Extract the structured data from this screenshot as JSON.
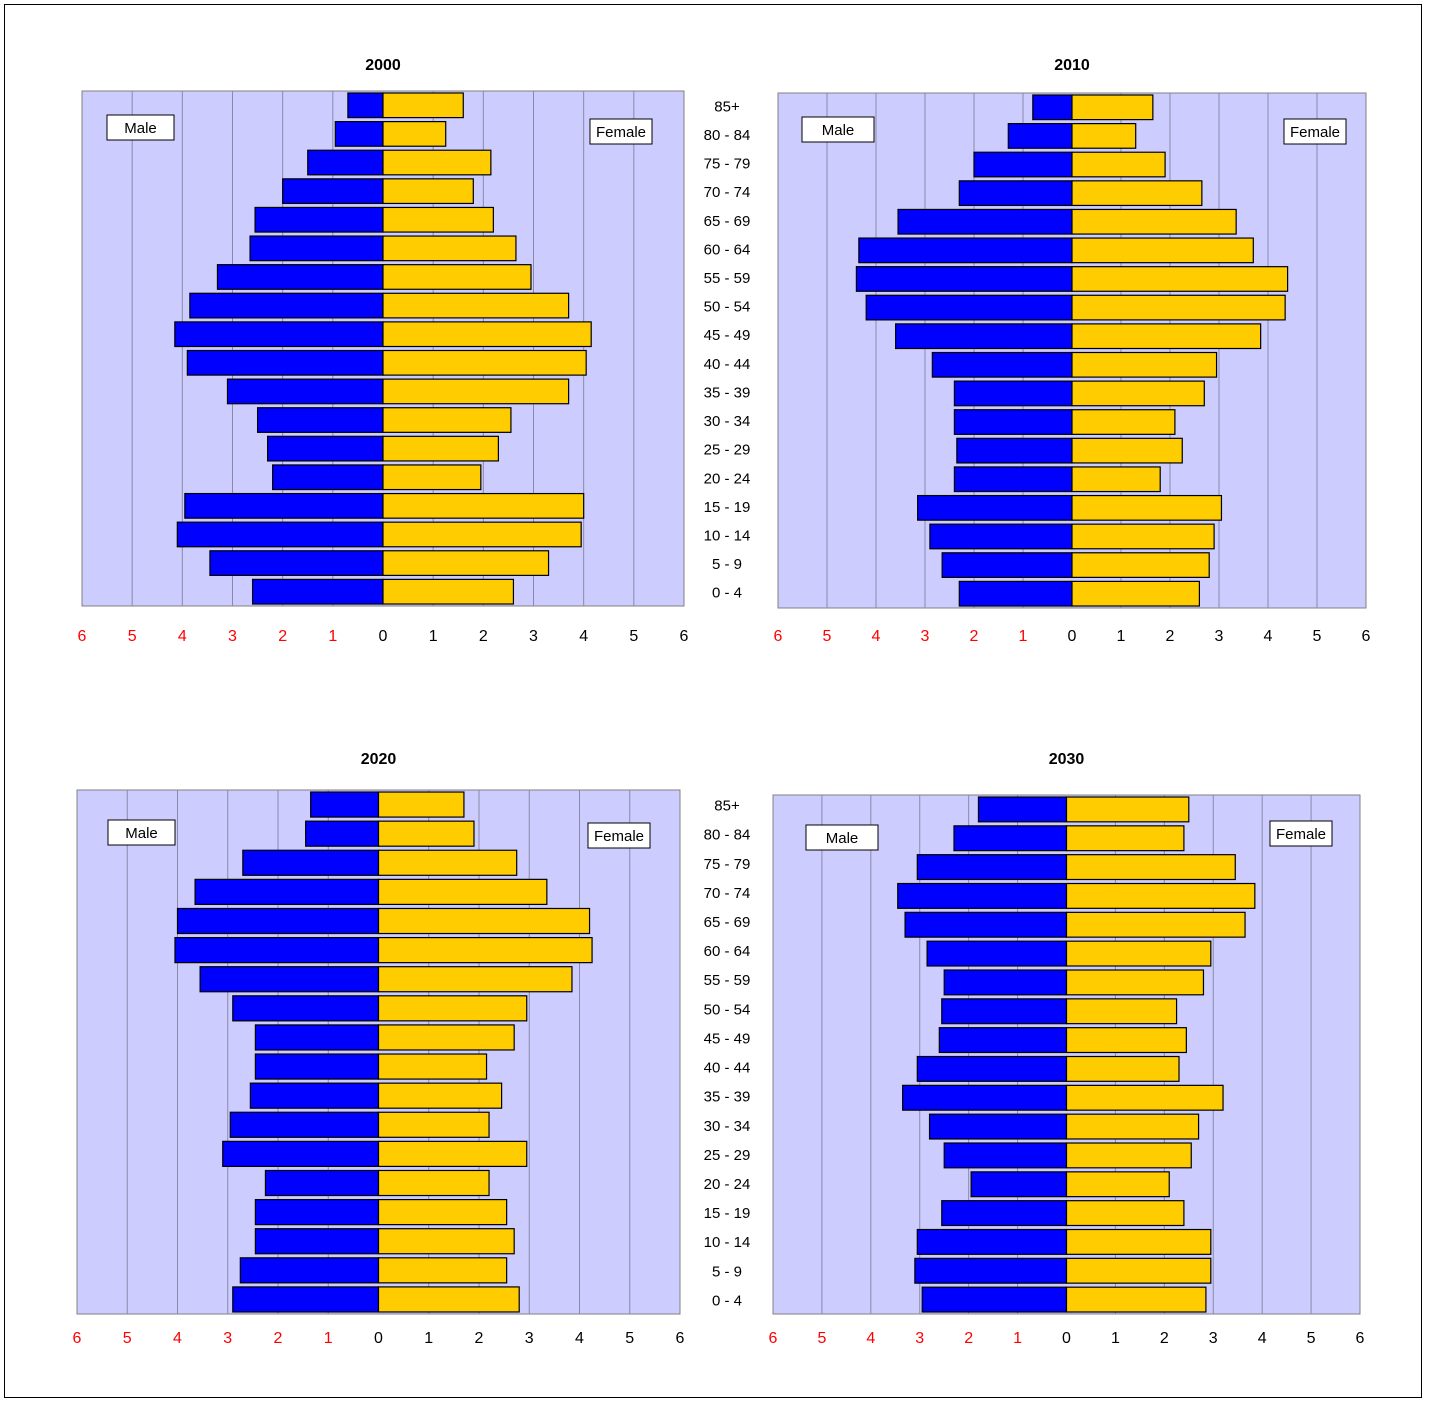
{
  "age_groups": [
    "85+",
    "80 - 84",
    "75 - 79",
    "70 - 74",
    "65 - 69",
    "60 - 64",
    "55 - 59",
    "50 - 54",
    "45 - 49",
    "40 - 44",
    "35 - 39",
    "30 - 34",
    "25 - 29",
    "20 - 24",
    "15 - 19",
    "10 - 14",
    "5 - 9",
    "0 - 4"
  ],
  "male_label": "Male",
  "female_label": "Female",
  "colors": {
    "male": "#0000FF",
    "female": "#FFCC00",
    "plot_bg": "#CCCCFF",
    "grid": "#8A8AA8",
    "male_tick": "#FF0000"
  },
  "chart_data": [
    {
      "type": "bar",
      "title": "2000",
      "xlim": [
        -6,
        6
      ],
      "x_ticks": [
        6,
        5,
        4,
        3,
        2,
        1,
        0,
        1,
        2,
        3,
        4,
        5,
        6
      ],
      "categories": [
        "85+",
        "80 - 84",
        "75 - 79",
        "70 - 74",
        "65 - 69",
        "60 - 64",
        "55 - 59",
        "50 - 54",
        "45 - 49",
        "40 - 44",
        "35 - 39",
        "30 - 34",
        "25 - 29",
        "20 - 24",
        "15 - 19",
        "10 - 14",
        "5 - 9",
        "0 - 4"
      ],
      "series": [
        {
          "name": "Male",
          "values": [
            0.7,
            0.95,
            1.5,
            2.0,
            2.55,
            2.65,
            3.3,
            3.85,
            4.15,
            3.9,
            3.1,
            2.5,
            2.3,
            2.2,
            3.95,
            4.1,
            3.45,
            2.6
          ]
        },
        {
          "name": "Female",
          "values": [
            1.6,
            1.25,
            2.15,
            1.8,
            2.2,
            2.65,
            2.95,
            3.7,
            4.15,
            4.05,
            3.7,
            2.55,
            2.3,
            1.95,
            4.0,
            3.95,
            3.3,
            2.6
          ]
        }
      ]
    },
    {
      "type": "bar",
      "title": "2010",
      "xlim": [
        -6,
        6
      ],
      "x_ticks": [
        6,
        5,
        4,
        3,
        2,
        1,
        0,
        1,
        2,
        3,
        4,
        5,
        6
      ],
      "categories": [
        "85+",
        "80 - 84",
        "75 - 79",
        "70 - 74",
        "65 - 69",
        "60 - 64",
        "55 - 59",
        "50 - 54",
        "45 - 49",
        "40 - 44",
        "35 - 39",
        "30 - 34",
        "25 - 29",
        "20 - 24",
        "15 - 19",
        "10 - 14",
        "5 - 9",
        "0 - 4"
      ],
      "series": [
        {
          "name": "Male",
          "values": [
            0.8,
            1.3,
            2.0,
            2.3,
            3.55,
            4.35,
            4.4,
            4.2,
            3.6,
            2.85,
            2.4,
            2.4,
            2.35,
            2.4,
            3.15,
            2.9,
            2.65,
            2.3
          ]
        },
        {
          "name": "Female",
          "values": [
            1.65,
            1.3,
            1.9,
            2.65,
            3.35,
            3.7,
            4.4,
            4.35,
            3.85,
            2.95,
            2.7,
            2.1,
            2.25,
            1.8,
            3.05,
            2.9,
            2.8,
            2.6
          ]
        }
      ]
    },
    {
      "type": "bar",
      "title": "2020",
      "xlim": [
        -6,
        6
      ],
      "x_ticks": [
        6,
        5,
        4,
        3,
        2,
        1,
        0,
        1,
        2,
        3,
        4,
        5,
        6
      ],
      "categories": [
        "85+",
        "80 - 84",
        "75 - 79",
        "70 - 74",
        "65 - 69",
        "60 - 64",
        "55 - 59",
        "50 - 54",
        "45 - 49",
        "40 - 44",
        "35 - 39",
        "30 - 34",
        "25 - 29",
        "20 - 24",
        "15 - 19",
        "10 - 14",
        "5 - 9",
        "0 - 4"
      ],
      "series": [
        {
          "name": "Male",
          "values": [
            1.35,
            1.45,
            2.7,
            3.65,
            4.0,
            4.05,
            3.55,
            2.9,
            2.45,
            2.45,
            2.55,
            2.95,
            3.1,
            2.25,
            2.45,
            2.45,
            2.75,
            2.9
          ]
        },
        {
          "name": "Female",
          "values": [
            1.7,
            1.9,
            2.75,
            3.35,
            4.2,
            4.25,
            3.85,
            2.95,
            2.7,
            2.15,
            2.45,
            2.2,
            2.95,
            2.2,
            2.55,
            2.7,
            2.55,
            2.8
          ]
        }
      ]
    },
    {
      "type": "bar",
      "title": "2030",
      "xlim": [
        -6,
        6
      ],
      "x_ticks": [
        6,
        5,
        4,
        3,
        2,
        1,
        0,
        1,
        2,
        3,
        4,
        5,
        6
      ],
      "categories": [
        "85+",
        "80 - 84",
        "75 - 79",
        "70 - 74",
        "65 - 69",
        "60 - 64",
        "55 - 59",
        "50 - 54",
        "45 - 49",
        "40 - 44",
        "35 - 39",
        "30 - 34",
        "25 - 29",
        "20 - 24",
        "15 - 19",
        "10 - 14",
        "5 - 9",
        "0 - 4"
      ],
      "series": [
        {
          "name": "Male",
          "values": [
            1.8,
            2.3,
            3.05,
            3.45,
            3.3,
            2.85,
            2.5,
            2.55,
            2.6,
            3.05,
            3.35,
            2.8,
            2.5,
            1.95,
            2.55,
            3.05,
            3.1,
            2.95
          ]
        },
        {
          "name": "Female",
          "values": [
            2.5,
            2.4,
            3.45,
            3.85,
            3.65,
            2.95,
            2.8,
            2.25,
            2.45,
            2.3,
            3.2,
            2.7,
            2.55,
            2.1,
            2.4,
            2.95,
            2.95,
            2.85
          ]
        }
      ]
    }
  ]
}
